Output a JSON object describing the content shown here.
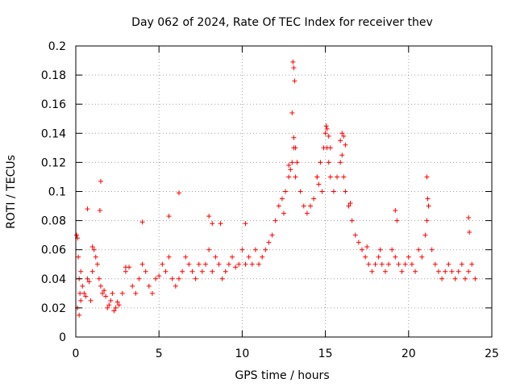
{
  "chart_data": {
    "type": "scatter",
    "title": "Day 062 of 2024, Rate Of TEC Index for receiver thev",
    "xlabel": "GPS time / hours",
    "ylabel": "ROTI / TECUs",
    "xlim": [
      0,
      25
    ],
    "ylim": [
      0,
      0.2
    ],
    "xticks": [
      0,
      5,
      10,
      15,
      20,
      25
    ],
    "xtick_labels": [
      "0",
      "5",
      "10",
      "15",
      "20",
      "25"
    ],
    "yticks": [
      0,
      0.02,
      0.04,
      0.06,
      0.08,
      0.1,
      0.12,
      0.14,
      0.16,
      0.18,
      0.2
    ],
    "ytick_labels": [
      "0",
      "0.02",
      "0.04",
      "0.06",
      "0.08",
      "0.1",
      "0.12",
      "0.14",
      "0.16",
      "0.18",
      "0.2"
    ],
    "grid": true,
    "marker": "+",
    "color": "#ff0000",
    "series": [
      {
        "name": "ROTI",
        "x": [
          0.05,
          0.1,
          0.15,
          0.2,
          0.25,
          0.3,
          0.1,
          0.2,
          0.3,
          0.4,
          0.5,
          0.6,
          0.7,
          0.8,
          0.9,
          1.0,
          1.1,
          1.2,
          1.3,
          1.4,
          1.5,
          1.6,
          1.7,
          1.8,
          1.9,
          2.0,
          2.1,
          2.2,
          2.3,
          2.4,
          2.5,
          2.6,
          2.8,
          3.0,
          3.2,
          3.4,
          3.6,
          3.8,
          4.0,
          4.2,
          4.4,
          4.6,
          4.8,
          5.0,
          5.2,
          5.4,
          5.6,
          5.8,
          6.0,
          6.2,
          6.4,
          6.6,
          6.8,
          7.0,
          7.2,
          7.4,
          7.6,
          7.8,
          8.0,
          8.2,
          8.4,
          8.6,
          8.8,
          9.0,
          9.2,
          9.4,
          9.6,
          9.8,
          10.0,
          10.2,
          10.4,
          10.6,
          10.8,
          11.0,
          11.2,
          11.4,
          11.6,
          11.8,
          12.0,
          12.2,
          12.4,
          12.6,
          12.8,
          13.0,
          13.1,
          13.2,
          13.3,
          13.5,
          13.7,
          13.9,
          14.1,
          14.3,
          14.5,
          14.7,
          14.9,
          15.0,
          15.1,
          15.2,
          15.3,
          15.5,
          15.7,
          15.9,
          16.0,
          16.1,
          16.2,
          16.4,
          16.6,
          16.8,
          17.0,
          17.2,
          17.4,
          17.6,
          17.8,
          18.0,
          18.2,
          18.4,
          18.6,
          18.8,
          19.0,
          19.2,
          19.4,
          19.6,
          19.8,
          20.0,
          20.2,
          20.4,
          20.6,
          20.8,
          21.0,
          21.1,
          21.2,
          21.4,
          21.6,
          21.8,
          22.0,
          22.2,
          22.4,
          22.6,
          22.8,
          23.0,
          23.2,
          23.4,
          23.6,
          23.8,
          24.0,
          1.5,
          1.45,
          0.7,
          4.0,
          5.6,
          6.2,
          13.05,
          13.1,
          13.15,
          13.0,
          13.1,
          13.2,
          15.05,
          15.1,
          15.2,
          15.3,
          16.0,
          16.1,
          15.9,
          16.2,
          19.2,
          19.3,
          21.1,
          21.15,
          21.2,
          23.6,
          23.65,
          12.8,
          12.9,
          14.5,
          14.6,
          14.8,
          16.4,
          16.5,
          8.0,
          8.2,
          8.7,
          10.2,
          12.5,
          1.0,
          3.0,
          17.5,
          18.3
        ],
        "y": [
          0.07,
          0.068,
          0.055,
          0.04,
          0.03,
          0.045,
          0.02,
          0.015,
          0.025,
          0.035,
          0.03,
          0.028,
          0.04,
          0.038,
          0.025,
          0.045,
          0.06,
          0.055,
          0.05,
          0.04,
          0.035,
          0.03,
          0.032,
          0.028,
          0.02,
          0.022,
          0.025,
          0.03,
          0.018,
          0.02,
          0.024,
          0.022,
          0.03,
          0.045,
          0.048,
          0.035,
          0.03,
          0.04,
          0.05,
          0.045,
          0.035,
          0.03,
          0.04,
          0.042,
          0.05,
          0.045,
          0.055,
          0.04,
          0.035,
          0.04,
          0.045,
          0.055,
          0.05,
          0.045,
          0.04,
          0.05,
          0.045,
          0.05,
          0.06,
          0.045,
          0.055,
          0.05,
          0.04,
          0.045,
          0.05,
          0.055,
          0.048,
          0.05,
          0.06,
          0.05,
          0.055,
          0.05,
          0.06,
          0.05,
          0.055,
          0.06,
          0.065,
          0.07,
          0.08,
          0.09,
          0.095,
          0.1,
          0.11,
          0.12,
          0.13,
          0.11,
          0.12,
          0.1,
          0.09,
          0.085,
          0.09,
          0.095,
          0.11,
          0.12,
          0.13,
          0.14,
          0.13,
          0.12,
          0.11,
          0.1,
          0.11,
          0.12,
          0.125,
          0.11,
          0.1,
          0.09,
          0.08,
          0.07,
          0.065,
          0.06,
          0.055,
          0.05,
          0.045,
          0.05,
          0.055,
          0.05,
          0.045,
          0.05,
          0.06,
          0.055,
          0.05,
          0.045,
          0.05,
          0.055,
          0.05,
          0.045,
          0.06,
          0.055,
          0.07,
          0.08,
          0.09,
          0.06,
          0.05,
          0.045,
          0.04,
          0.045,
          0.05,
          0.045,
          0.04,
          0.045,
          0.05,
          0.04,
          0.045,
          0.05,
          0.04,
          0.107,
          0.087,
          0.088,
          0.079,
          0.083,
          0.099,
          0.189,
          0.185,
          0.176,
          0.154,
          0.137,
          0.13,
          0.145,
          0.143,
          0.138,
          0.13,
          0.14,
          0.138,
          0.135,
          0.132,
          0.087,
          0.08,
          0.11,
          0.095,
          0.09,
          0.082,
          0.072,
          0.118,
          0.115,
          0.11,
          0.105,
          0.1,
          0.09,
          0.092,
          0.083,
          0.078,
          0.078,
          0.078,
          0.085,
          0.062,
          0.048,
          0.062,
          0.06
        ]
      }
    ]
  }
}
